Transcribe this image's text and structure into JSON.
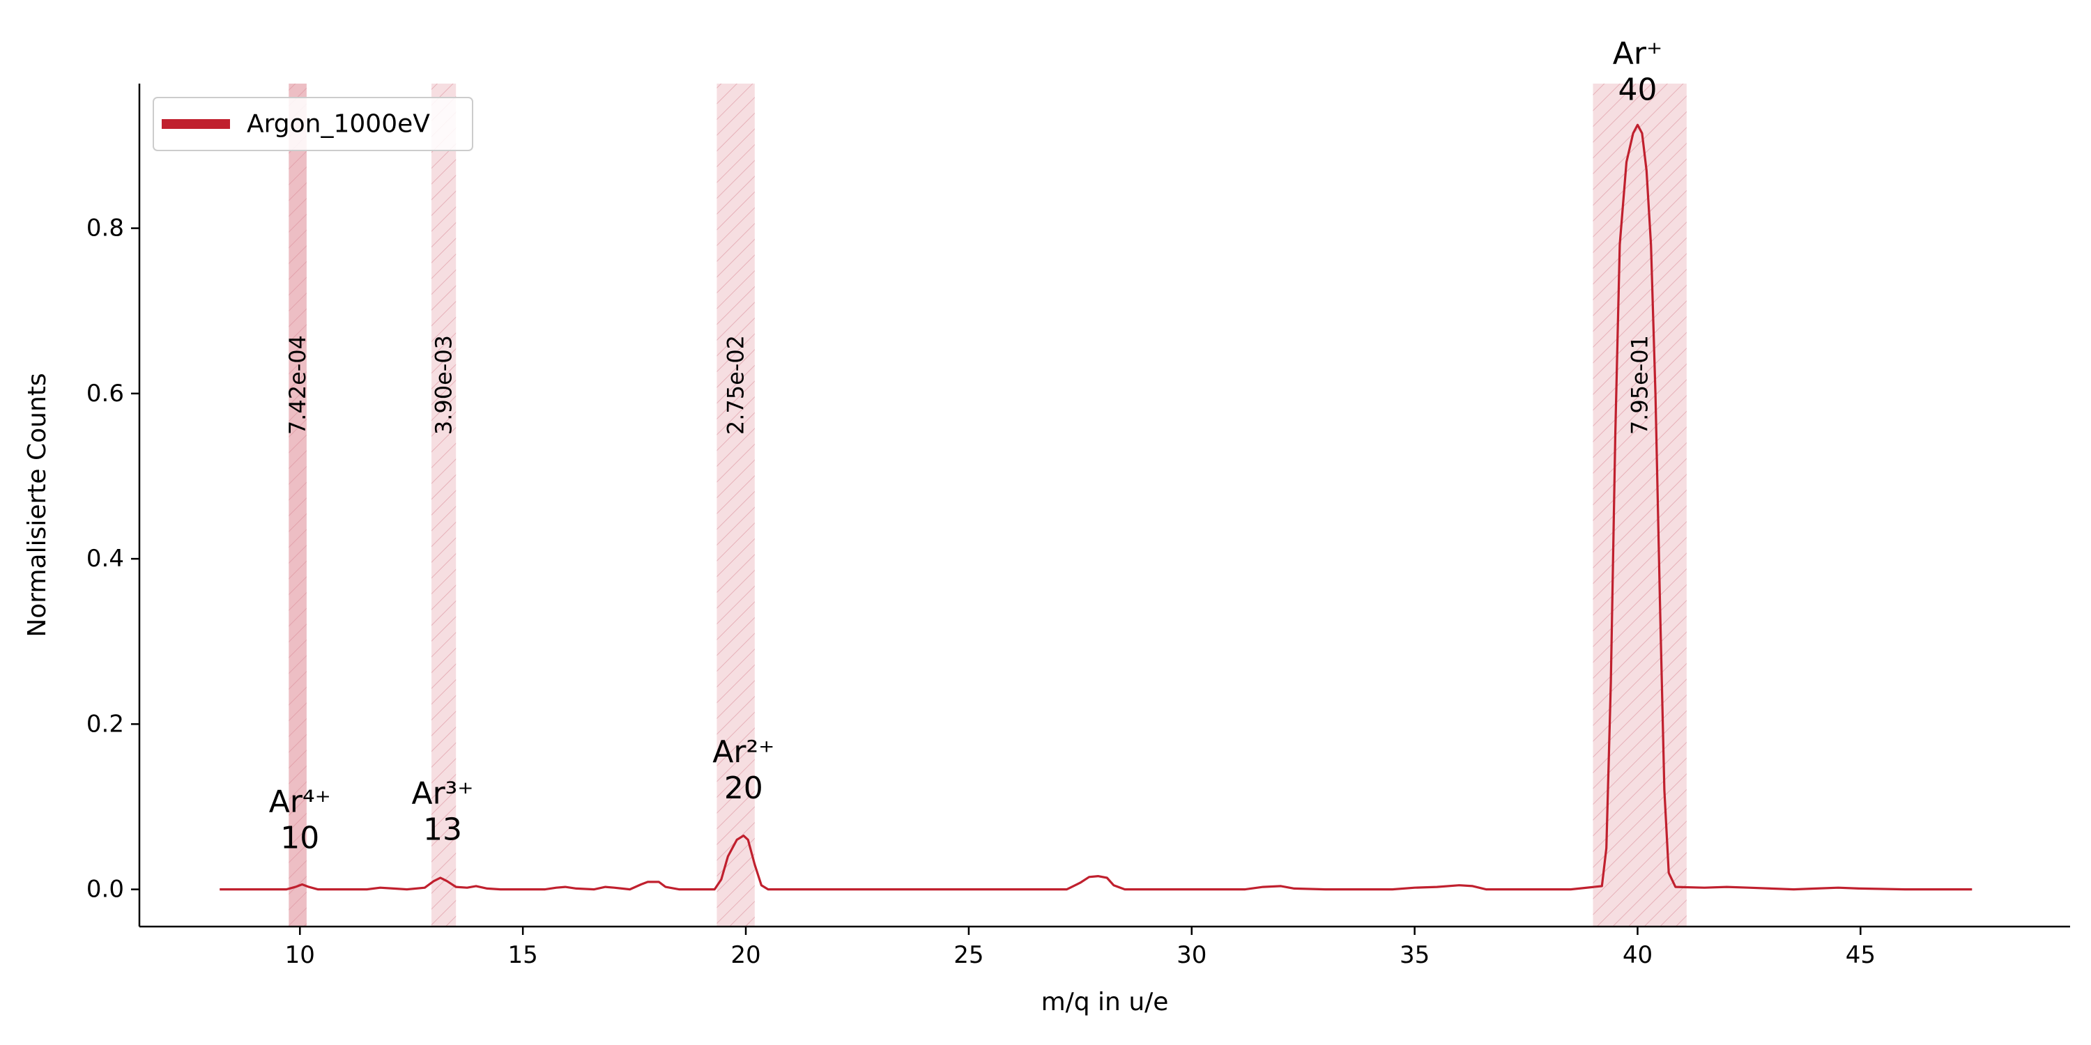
{
  "chart_data": {
    "type": "line",
    "title": "",
    "xlabel": "m/q in u/e",
    "ylabel": "Normalisierte Counts",
    "xlim": [
      6.4,
      49.7
    ],
    "ylim": [
      -0.045,
      0.975
    ],
    "x_ticks": [
      10,
      15,
      20,
      25,
      30,
      35,
      40,
      45
    ],
    "y_ticks": [
      0.0,
      0.2,
      0.4,
      0.6,
      0.8
    ],
    "y_tick_labels": [
      "0.0",
      "0.2",
      "0.4",
      "0.6",
      "0.8"
    ],
    "grid": false,
    "legend_position": "top-left",
    "series": [
      {
        "name": "Argon_1000eV",
        "color": "#c0202e",
        "points": [
          [
            8.2,
            0.0
          ],
          [
            9.7,
            0.0
          ],
          [
            9.9,
            0.003
          ],
          [
            10.05,
            0.006
          ],
          [
            10.2,
            0.003
          ],
          [
            10.4,
            0.0
          ],
          [
            11.5,
            0.0
          ],
          [
            11.8,
            0.002
          ],
          [
            12.1,
            0.001
          ],
          [
            12.4,
            0.0
          ],
          [
            12.8,
            0.002
          ],
          [
            13.0,
            0.01
          ],
          [
            13.15,
            0.014
          ],
          [
            13.3,
            0.01
          ],
          [
            13.5,
            0.003
          ],
          [
            13.75,
            0.002
          ],
          [
            13.95,
            0.004
          ],
          [
            14.2,
            0.001
          ],
          [
            14.5,
            0.0
          ],
          [
            15.5,
            0.0
          ],
          [
            15.75,
            0.002
          ],
          [
            15.95,
            0.003
          ],
          [
            16.2,
            0.001
          ],
          [
            16.6,
            0.0
          ],
          [
            16.85,
            0.003
          ],
          [
            17.05,
            0.002
          ],
          [
            17.4,
            0.0
          ],
          [
            17.65,
            0.006
          ],
          [
            17.8,
            0.009
          ],
          [
            18.05,
            0.009
          ],
          [
            18.2,
            0.003
          ],
          [
            18.5,
            0.0
          ],
          [
            19.3,
            0.0
          ],
          [
            19.45,
            0.012
          ],
          [
            19.6,
            0.04
          ],
          [
            19.8,
            0.06
          ],
          [
            19.95,
            0.065
          ],
          [
            20.05,
            0.06
          ],
          [
            20.2,
            0.03
          ],
          [
            20.35,
            0.005
          ],
          [
            20.5,
            0.0
          ],
          [
            26.5,
            0.0
          ],
          [
            27.2,
            0.0
          ],
          [
            27.5,
            0.008
          ],
          [
            27.7,
            0.015
          ],
          [
            27.9,
            0.016
          ],
          [
            28.1,
            0.014
          ],
          [
            28.25,
            0.005
          ],
          [
            28.5,
            0.0
          ],
          [
            31.2,
            0.0
          ],
          [
            31.6,
            0.003
          ],
          [
            32.0,
            0.004
          ],
          [
            32.3,
            0.001
          ],
          [
            33.0,
            0.0
          ],
          [
            34.5,
            0.0
          ],
          [
            35.0,
            0.002
          ],
          [
            35.5,
            0.003
          ],
          [
            36.0,
            0.005
          ],
          [
            36.3,
            0.004
          ],
          [
            36.6,
            0.0
          ],
          [
            38.5,
            0.0
          ],
          [
            39.2,
            0.004
          ],
          [
            39.3,
            0.05
          ],
          [
            39.4,
            0.25
          ],
          [
            39.5,
            0.55
          ],
          [
            39.6,
            0.78
          ],
          [
            39.75,
            0.88
          ],
          [
            39.9,
            0.915
          ],
          [
            40.0,
            0.925
          ],
          [
            40.1,
            0.915
          ],
          [
            40.2,
            0.87
          ],
          [
            40.3,
            0.78
          ],
          [
            40.4,
            0.6
          ],
          [
            40.5,
            0.35
          ],
          [
            40.6,
            0.12
          ],
          [
            40.7,
            0.02
          ],
          [
            40.85,
            0.003
          ],
          [
            41.5,
            0.002
          ],
          [
            42.0,
            0.003
          ],
          [
            42.5,
            0.002
          ],
          [
            43.5,
            0.0
          ],
          [
            44.0,
            0.001
          ],
          [
            44.5,
            0.002
          ],
          [
            45.0,
            0.001
          ],
          [
            46.0,
            0.0
          ],
          [
            47.5,
            0.0
          ]
        ]
      }
    ],
    "highlight_regions": [
      {
        "x0": 9.75,
        "x1": 10.15,
        "label_value": "7.42e-04",
        "color": "#e7a8b0",
        "opacity": 0.75,
        "ion": "Ar⁴⁺",
        "mq": "10",
        "ion_center": 10.0,
        "ion_y": 0.05
      },
      {
        "x0": 12.95,
        "x1": 13.5,
        "label_value": "3.90e-03",
        "color": "#e7a8b0",
        "opacity": 0.38,
        "ion": "Ar³⁺",
        "mq": "13",
        "ion_center": 13.2,
        "ion_y": 0.06
      },
      {
        "x0": 19.35,
        "x1": 20.2,
        "label_value": "2.75e-02",
        "color": "#e7a8b0",
        "opacity": 0.38,
        "ion": "Ar²⁺",
        "mq": "20",
        "ion_center": 19.95,
        "ion_y": 0.11
      },
      {
        "x0": 39.0,
        "x1": 41.1,
        "label_value": "7.95e-01",
        "color": "#e7a8b0",
        "opacity": 0.38,
        "ion": "Ar⁺",
        "mq": "40",
        "ion_center": 40.0,
        "ion_y": 0.955
      }
    ],
    "region_label_y": 0.55
  }
}
